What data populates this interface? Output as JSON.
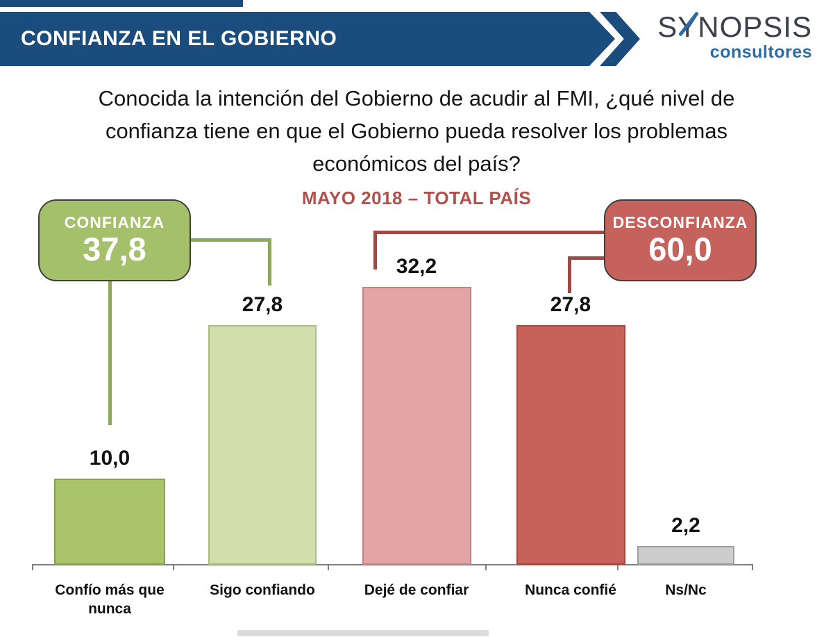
{
  "header": {
    "title": "CONFIANZA EN EL GOBIERNO",
    "logo": {
      "name_part1": "S",
      "name_part2": "Y",
      "name_part3": "NOPSIS",
      "subtext": "consultores"
    }
  },
  "question": {
    "line1": "Conocida la intención del Gobierno de acudir al FMI, ¿qué nivel de",
    "line2": "confianza tiene en que el Gobierno pueda resolver los problemas",
    "line3": "económicos del país?"
  },
  "subtitle": "MAYO 2018 – TOTAL PAÍS",
  "summary": {
    "confianza": {
      "label": "CONFIANZA",
      "value": "37,8"
    },
    "desconfianza": {
      "label": "DESCONFIANZA",
      "value": "60,0"
    }
  },
  "chart_data": {
    "type": "bar",
    "title": "Conocida la intención del Gobierno de acudir al FMI, ¿qué nivel de confianza tiene en que el Gobierno pueda resolver los problemas económicos del país?",
    "subtitle": "MAYO 2018 – TOTAL PAÍS",
    "categories": [
      "Confío más que nunca",
      "Sigo confiando",
      "Dejé de confiar",
      "Nunca confié",
      "Ns/Nc"
    ],
    "values": [
      10.0,
      27.8,
      32.2,
      27.8,
      2.2
    ],
    "value_labels": [
      "10,0",
      "27,8",
      "32,2",
      "27,8",
      "2,2"
    ],
    "bar_fill_colors": [
      "#a9c46b",
      "#d2dfad",
      "#e2a4a4",
      "#c6625a",
      "#cdcdcd"
    ],
    "bar_border_colors": [
      "#87a04c",
      "#aabd80",
      "#c08484",
      "#9d4a43",
      "#9f9f9f"
    ],
    "ylim": [
      0,
      35
    ],
    "grid": false,
    "legend": false,
    "groups": [
      {
        "name": "CONFIANZA",
        "value": 37.8,
        "display": "37,8",
        "color": "#a5c06b",
        "covers": [
          "Confío más que nunca",
          "Sigo confiando"
        ]
      },
      {
        "name": "DESCONFIANZA",
        "value": 60.0,
        "display": "60,0",
        "color": "#c6625c",
        "covers": [
          "Dejé de confiar",
          "Nunca confié"
        ]
      }
    ]
  },
  "colors": {
    "header_blue": "#1a4c7d",
    "logo_dark": "#3c404d",
    "logo_blue": "#2c6ba5",
    "subtitle_red": "#b3504b",
    "confianza_green": "#a5c06b",
    "desconfianza_red": "#c6625c",
    "connector_green": "#8ea75e",
    "connector_red": "#9e4b45",
    "axis_gray": "#7f7f7f"
  }
}
